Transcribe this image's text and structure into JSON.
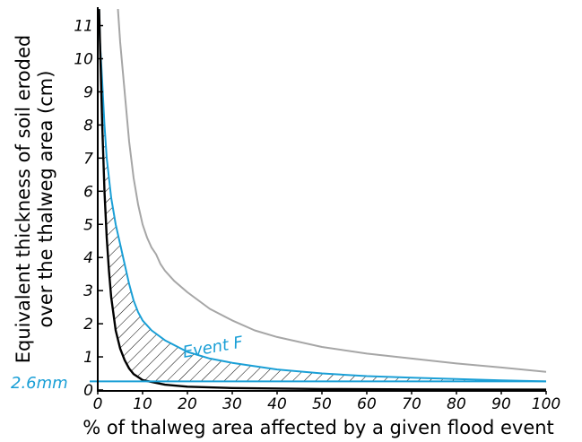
{
  "chart_data": {
    "type": "line",
    "xlabel": "% of thalweg area affected by a given flood event",
    "ylabel_lines": [
      "Equivalent thickness of soil eroded",
      "over the thalweg area (cm)"
    ],
    "xlim": [
      0,
      100
    ],
    "ylim": [
      0,
      11.5
    ],
    "x_ticks": [
      0,
      10,
      20,
      30,
      40,
      50,
      60,
      70,
      80,
      90,
      100
    ],
    "y_ticks": [
      0,
      1,
      2,
      3,
      4,
      5,
      6,
      7,
      8,
      9,
      10,
      11
    ],
    "series": [
      {
        "name": "",
        "color": "#a6a6a6",
        "points": [
          [
            4.5,
            11.5
          ],
          [
            5,
            10.5
          ],
          [
            6,
            9
          ],
          [
            7,
            7.5
          ],
          [
            8,
            6.4
          ],
          [
            9,
            5.6
          ],
          [
            10,
            5.0
          ],
          [
            11,
            4.6
          ],
          [
            12,
            4.3
          ],
          [
            13,
            4.1
          ],
          [
            14,
            3.8
          ],
          [
            15,
            3.6
          ],
          [
            17,
            3.3
          ],
          [
            20,
            2.95
          ],
          [
            25,
            2.45
          ],
          [
            30,
            2.1
          ],
          [
            35,
            1.8
          ],
          [
            40,
            1.6
          ],
          [
            50,
            1.3
          ],
          [
            60,
            1.1
          ],
          [
            70,
            0.95
          ],
          [
            80,
            0.8
          ],
          [
            90,
            0.68
          ],
          [
            100,
            0.55
          ]
        ]
      },
      {
        "name": "Event F",
        "color": "#1a9fd6",
        "points": [
          [
            0.3,
            11.5
          ],
          [
            0.5,
            10.5
          ],
          [
            1,
            9.3
          ],
          [
            1.5,
            8
          ],
          [
            2,
            7
          ],
          [
            3,
            5.8
          ],
          [
            4,
            5
          ],
          [
            5,
            4.4
          ],
          [
            6,
            3.8
          ],
          [
            7,
            3.2
          ],
          [
            8,
            2.7
          ],
          [
            9,
            2.35
          ],
          [
            10,
            2.1
          ],
          [
            12,
            1.8
          ],
          [
            15,
            1.5
          ],
          [
            20,
            1.15
          ],
          [
            25,
            0.95
          ],
          [
            30,
            0.82
          ],
          [
            40,
            0.62
          ],
          [
            50,
            0.5
          ],
          [
            60,
            0.42
          ],
          [
            70,
            0.37
          ],
          [
            80,
            0.33
          ],
          [
            90,
            0.29
          ],
          [
            100,
            0.26
          ]
        ]
      },
      {
        "name": "",
        "color": "#000000",
        "points": [
          [
            0.3,
            11.5
          ],
          [
            0.5,
            10.5
          ],
          [
            1,
            8
          ],
          [
            1.5,
            6
          ],
          [
            2,
            4.6
          ],
          [
            2.5,
            3.6
          ],
          [
            3,
            2.8
          ],
          [
            4,
            1.8
          ],
          [
            5,
            1.25
          ],
          [
            6,
            0.9
          ],
          [
            7,
            0.65
          ],
          [
            8,
            0.48
          ],
          [
            10,
            0.3
          ],
          [
            15,
            0.16
          ],
          [
            20,
            0.1
          ],
          [
            30,
            0.06
          ],
          [
            50,
            0.03
          ],
          [
            70,
            0.02
          ],
          [
            100,
            0.01
          ]
        ]
      }
    ],
    "threshold": {
      "label": "2.6mm",
      "y": 0.26,
      "color": "#1a9fd6"
    },
    "hatched_region": "between Event F and the black curve, above the 2.6mm line",
    "grid": false,
    "legend": "none"
  }
}
